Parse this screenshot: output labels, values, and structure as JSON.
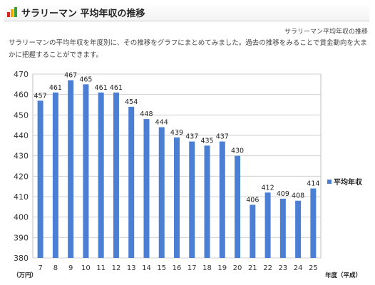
{
  "header": {
    "title": "サラリーマン 平均年収の推移",
    "logo_icon": "bar-chart-logo-icon",
    "logo_colors": [
      "#d6261c",
      "#f2a400",
      "#39a03a"
    ]
  },
  "subtitle": "サラリーマン平均年収の推移",
  "description": "サラリーマンの平均年収を年度別に、その推移をグラフにまとめてみました。過去の推移をみることで賃金動向を大まかに把握することができます。",
  "chart_data": {
    "type": "bar",
    "categories": [
      "7",
      "8",
      "9",
      "10",
      "11",
      "12",
      "13",
      "14",
      "15",
      "16",
      "17",
      "18",
      "19",
      "20",
      "21",
      "22",
      "23",
      "24",
      "25"
    ],
    "series": [
      {
        "name": "平均年収",
        "values": [
          457,
          461,
          467,
          465,
          461,
          461,
          454,
          448,
          444,
          439,
          437,
          435,
          437,
          430,
          406,
          412,
          409,
          408,
          414
        ]
      }
    ],
    "ylim": [
      380,
      470
    ],
    "yticks": [
      380,
      390,
      400,
      410,
      420,
      430,
      440,
      450,
      460,
      470
    ],
    "ylabel": "（万円）",
    "xlabel": "年度（平成）",
    "legend_position": "right",
    "grid": true,
    "bar_color": "#4a7fd4"
  }
}
